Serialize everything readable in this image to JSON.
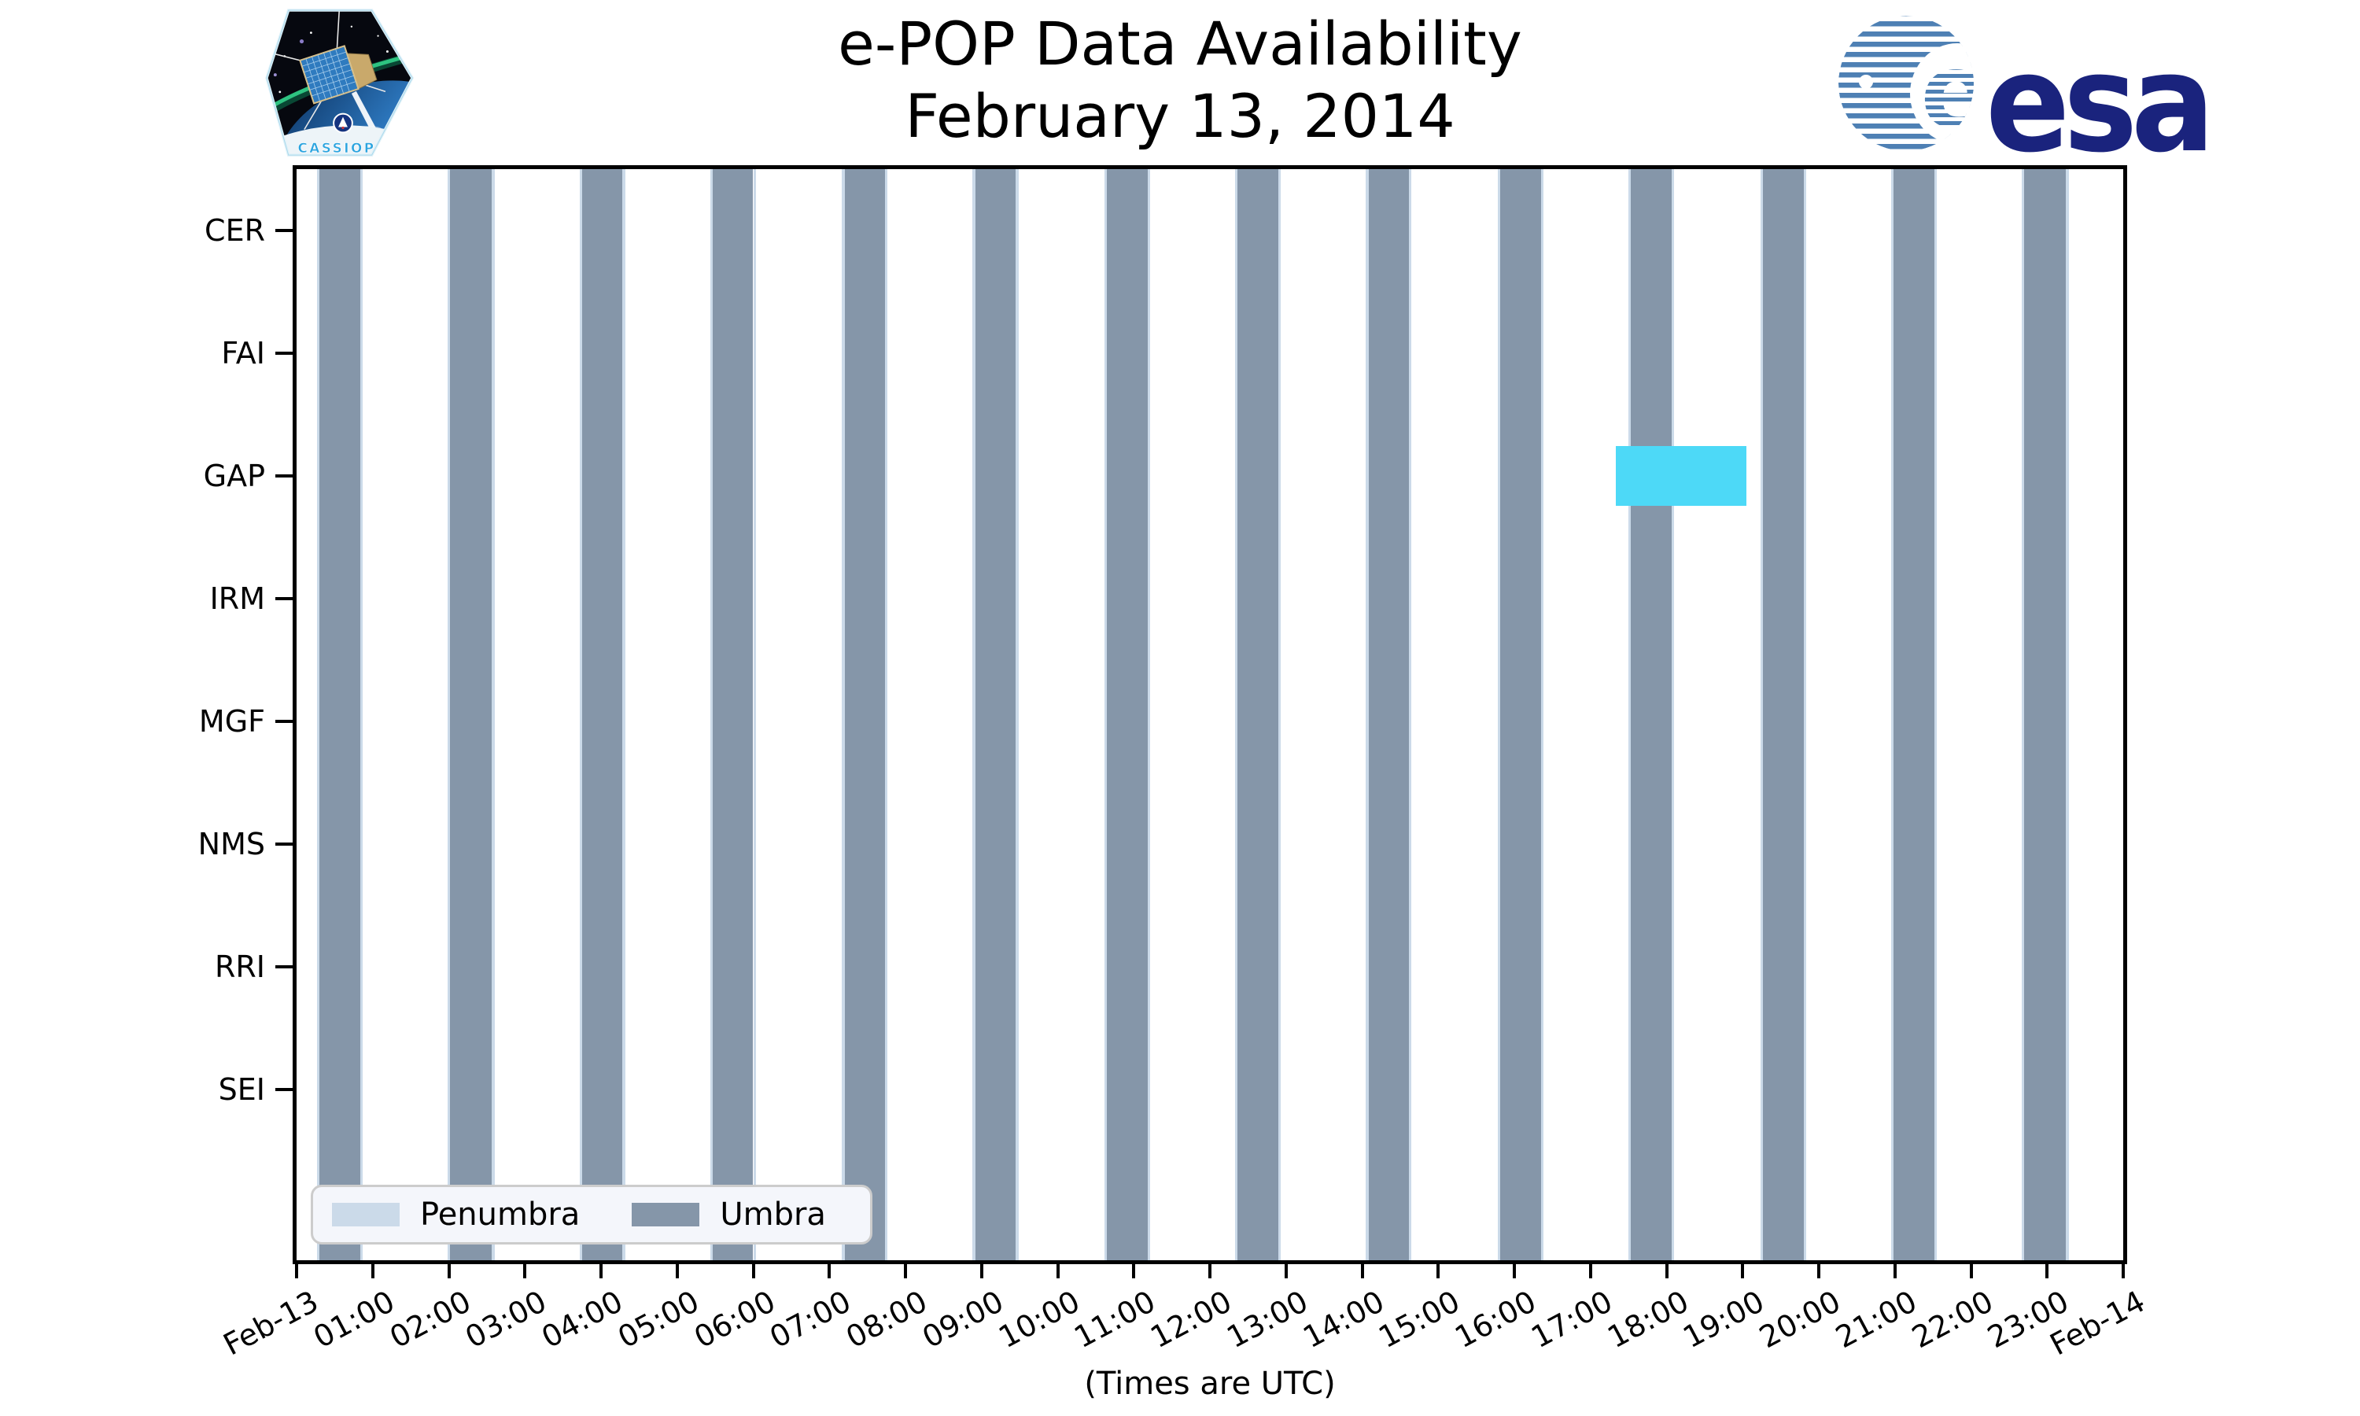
{
  "logos": {
    "cassiope": "CASSIOPE",
    "esa": "esa"
  },
  "chart_data": {
    "type": "timeline",
    "title": "e-POP Data Availability",
    "subtitle": "February 13, 2014",
    "xlabel": "(Times are UTC)",
    "x_range_hours": [
      0,
      24
    ],
    "x_tick_labels": [
      "Feb-13",
      "01:00",
      "02:00",
      "03:00",
      "04:00",
      "05:00",
      "06:00",
      "07:00",
      "08:00",
      "09:00",
      "10:00",
      "11:00",
      "12:00",
      "13:00",
      "14:00",
      "15:00",
      "16:00",
      "17:00",
      "18:00",
      "19:00",
      "20:00",
      "21:00",
      "22:00",
      "23:00",
      "Feb-14"
    ],
    "instruments": [
      "CER",
      "FAI",
      "GAP",
      "IRM",
      "MGF",
      "NMS",
      "RRI",
      "SEI"
    ],
    "availability": [
      {
        "instrument": "GAP",
        "start": "17:20",
        "end": "19:03"
      }
    ],
    "umbra_intervals": [
      {
        "start": "00:18",
        "end": "00:50"
      },
      {
        "start": "02:01",
        "end": "02:34"
      },
      {
        "start": "03:45",
        "end": "04:17"
      },
      {
        "start": "05:28",
        "end": "06:00"
      },
      {
        "start": "07:12",
        "end": "07:44"
      },
      {
        "start": "08:55",
        "end": "09:27"
      },
      {
        "start": "10:39",
        "end": "11:11"
      },
      {
        "start": "12:22",
        "end": "12:54"
      },
      {
        "start": "14:05",
        "end": "14:37"
      },
      {
        "start": "15:49",
        "end": "16:21"
      },
      {
        "start": "17:32",
        "end": "18:04"
      },
      {
        "start": "19:16",
        "end": "19:48"
      },
      {
        "start": "20:59",
        "end": "21:31"
      },
      {
        "start": "22:42",
        "end": "23:15"
      }
    ],
    "penumbra_edge_minutes": 2,
    "legend": [
      {
        "label": "Penumbra",
        "color": "#CBDAE9"
      },
      {
        "label": "Umbra",
        "color": "#8596A9"
      }
    ],
    "colors": {
      "umbra": "#8596A9",
      "penumbra": "#CBDAE9",
      "availability": "#4DD9F7",
      "spine": "#000000"
    },
    "grid": false,
    "legend_position": "lower left"
  }
}
